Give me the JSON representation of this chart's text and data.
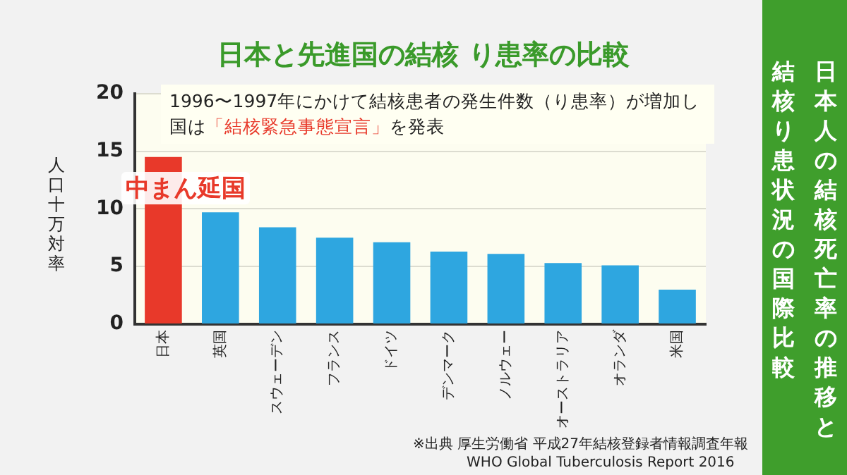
{
  "chart_data": {
    "type": "bar",
    "title": "日本と先進国の結核 り患率の比較",
    "subtitle": "日本人の結核死亡率の推移と",
    "ylabel": "人口十万対率",
    "categories": [
      "日本",
      "英国",
      "スウェーデン",
      "フランス",
      "ドイツ",
      "デンマーク",
      "ノルウェー",
      "オーストラリア",
      "オランダ",
      "米国"
    ],
    "values": [
      14.5,
      9.7,
      8.4,
      7.5,
      7.1,
      6.3,
      6.1,
      5.3,
      5.1,
      3.0
    ],
    "colors": [
      "#e8392a",
      "#2ea6e0",
      "#2ea6e0",
      "#2ea6e0",
      "#2ea6e0",
      "#2ea6e0",
      "#2ea6e0",
      "#2ea6e0",
      "#2ea6e0",
      "#2ea6e0"
    ],
    "ylim": [
      0,
      20
    ],
    "yticks": [
      0,
      5,
      10,
      15,
      20
    ],
    "grid": "y",
    "annotations": [
      "1996〜1997年にかけて結核患者の発生件数（り患率）が増加し",
      "国は",
      "「結核緊急事態宣言」",
      "を発表",
      "※出典 厚生労働省 平成27年結核登録者情報調査年報",
      "WHO Global Tuberculosis Report 2016",
      "中まん延国",
      "結核り患状況の国際比較"
    ]
  }
}
